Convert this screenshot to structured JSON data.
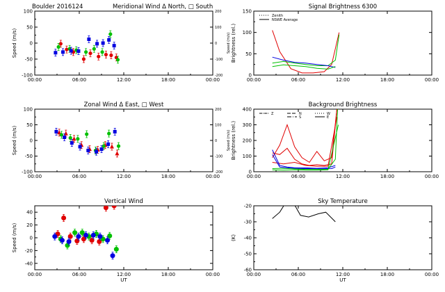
{
  "chart_data": [
    {
      "id": "meridional",
      "type": "scatter",
      "title_left": "Boulder   2016124",
      "title": "Meridional Wind   Δ North, □ South",
      "ylabel": "Speed (m/s)",
      "ylabel_right": "Speed (m/s)",
      "xlim": [
        0,
        24
      ],
      "ylim": [
        -100,
        100
      ],
      "yticks": [
        "-100",
        "-50",
        "0",
        "50",
        "100"
      ],
      "ylim_right": [
        -200,
        200
      ],
      "yticks_right": [
        "-200",
        "-100",
        "0",
        "100",
        "200"
      ],
      "xticks": [
        "00:00",
        "06:00",
        "12:00",
        "18:00",
        "00:00"
      ],
      "xlabel": "",
      "series": [
        {
          "color": "#e00000",
          "marker": "circle",
          "x": [
            3.5,
            4.3,
            5.2,
            6.6,
            7.5,
            8.6,
            9.6,
            10.3,
            11.0
          ],
          "y": [
            -2,
            -20,
            -28,
            -50,
            -32,
            -42,
            -36,
            -38,
            -45
          ]
        },
        {
          "color": "#00c000",
          "marker": "circle",
          "x": [
            3.2,
            4.7,
            5.6,
            6.9,
            8.0,
            9.1,
            10.2,
            11.2
          ],
          "y": [
            -12,
            -18,
            -22,
            -28,
            -18,
            -28,
            28,
            -52
          ]
        },
        {
          "color": "#0000e0",
          "marker": "square",
          "x": [
            2.8,
            3.8,
            4.9,
            5.9,
            7.3,
            8.4,
            9.2,
            10.0,
            10.7
          ],
          "y": [
            -30,
            -28,
            -24,
            -25,
            12,
            -2,
            0,
            10,
            -8
          ]
        }
      ]
    },
    {
      "id": "zonal",
      "type": "scatter",
      "title": "Zonal Wind    Δ East, □ West",
      "ylabel": "Speed (m/s)",
      "ylabel_right": "Speed (m/s)",
      "xlim": [
        0,
        24
      ],
      "ylim": [
        -100,
        100
      ],
      "yticks": [
        "-100",
        "-50",
        "0",
        "50",
        "100"
      ],
      "ylim_right": [
        -200,
        200
      ],
      "yticks_right": [
        "-200",
        "-100",
        "0",
        "100",
        "200"
      ],
      "xticks": [
        "00:00",
        "06:00",
        "12:00",
        "18:00",
        "00:00"
      ],
      "xlabel": "",
      "series": [
        {
          "color": "#e00000",
          "marker": "triangle",
          "x": [
            3.3,
            4.2,
            5.3,
            6.3,
            7.4,
            8.5,
            9.5,
            10.4,
            11.1
          ],
          "y": [
            25,
            22,
            5,
            -15,
            -28,
            -30,
            -15,
            -20,
            -42
          ]
        },
        {
          "color": "#00c000",
          "marker": "circle",
          "x": [
            3.6,
            4.8,
            5.8,
            7.0,
            8.2,
            9.3,
            10.0,
            11.3
          ],
          "y": [
            18,
            8,
            5,
            20,
            -32,
            -18,
            22,
            -18
          ]
        },
        {
          "color": "#0000e0",
          "marker": "square",
          "x": [
            2.9,
            4.0,
            5.0,
            6.1,
            7.2,
            8.3,
            9.0,
            9.9,
            10.8
          ],
          "y": [
            28,
            10,
            -8,
            -20,
            -32,
            -36,
            -28,
            -12,
            28
          ]
        }
      ]
    },
    {
      "id": "vertical",
      "type": "scatter",
      "title": "Vertical Wind",
      "ylabel": "Speed (m/s)",
      "xlim": [
        0,
        24
      ],
      "ylim": [
        -50,
        50
      ],
      "yticks": [
        "-40",
        "-20",
        "0",
        "20",
        "40"
      ],
      "ytick_values": [
        -40,
        -20,
        0,
        20,
        40
      ],
      "xticks": [
        "00:00",
        "06:00",
        "12:00",
        "18:00",
        "00:00"
      ],
      "xlabel": "UT",
      "series": [
        {
          "color": "#e00000",
          "marker": "circle",
          "x": [
            3.1,
            3.9,
            4.8,
            5.7,
            6.6,
            7.7,
            8.7,
            9.6,
            10.7
          ],
          "y": [
            6,
            31,
            2,
            -5,
            -2,
            -4,
            -6,
            47,
            50
          ]
        },
        {
          "color": "#00c000",
          "marker": "circle",
          "x": [
            3.5,
            4.4,
            5.4,
            6.4,
            7.3,
            8.3,
            9.2,
            10.1,
            11.0
          ],
          "y": [
            -2,
            -12,
            8,
            8,
            2,
            6,
            -2,
            3,
            -18
          ]
        },
        {
          "color": "#0000e0",
          "marker": "circle",
          "x": [
            2.7,
            3.7,
            4.6,
            5.9,
            6.9,
            7.9,
            8.8,
            9.8,
            10.5
          ],
          "y": [
            2,
            -4,
            -6,
            2,
            4,
            4,
            2,
            -4,
            -28
          ]
        }
      ]
    },
    {
      "id": "signal",
      "type": "line",
      "title": "Signal Brightness       6300",
      "ylabel": "Brightness (rel.)",
      "xlim": [
        0,
        24
      ],
      "ylim": [
        0,
        150
      ],
      "yticks": [
        "0",
        "50",
        "100",
        "150"
      ],
      "ytick_values": [
        0,
        50,
        100,
        150
      ],
      "xticks": [
        "00:00",
        "06:00",
        "12:00",
        "18:00",
        "00:00"
      ],
      "xlabel": "",
      "legend": [
        "Zenith",
        "NSWE Average"
      ],
      "series": [
        {
          "color": "#e00000",
          "x": [
            2.5,
            3.5,
            5,
            6.5,
            8,
            9.5,
            10.5,
            11.5
          ],
          "y": [
            105,
            55,
            15,
            5,
            5,
            8,
            25,
            100
          ]
        },
        {
          "color": "#00c000",
          "x": [
            2.5,
            4,
            5.5,
            7,
            8.5,
            10,
            11,
            11.5
          ],
          "y": [
            28,
            32,
            28,
            25,
            22,
            22,
            35,
            95
          ]
        },
        {
          "color": "#0000e0",
          "x": [
            2.5,
            4,
            5.5,
            7,
            8.5,
            10,
            11
          ],
          "y": [
            42,
            35,
            30,
            28,
            25,
            22,
            18
          ]
        },
        {
          "color": "#00c000",
          "x": [
            2.5,
            4,
            5.5,
            7,
            8.5,
            10,
            11
          ],
          "y": [
            20,
            24,
            22,
            20,
            16,
            14,
            20
          ]
        }
      ]
    },
    {
      "id": "background",
      "type": "line",
      "title": "Background Brightness",
      "ylabel": "Brightness (rel.)",
      "xlim": [
        0,
        24
      ],
      "ylim": [
        0,
        400
      ],
      "yticks": [
        "0",
        "100",
        "200",
        "300",
        "400"
      ],
      "ytick_values": [
        0,
        100,
        200,
        300,
        400
      ],
      "xticks": [
        "00:00",
        "06:00",
        "12:00",
        "18:00",
        "00:00"
      ],
      "xlabel": "",
      "legend": [
        "Z",
        "N",
        "S",
        "W",
        "E"
      ],
      "series": [
        {
          "color": "#e00000",
          "x": [
            2.5,
            3.5,
            4.5,
            5.5,
            6.5,
            7.5,
            8.5,
            9.5,
            10.5,
            11.2
          ],
          "y": [
            90,
            170,
            300,
            160,
            90,
            60,
            130,
            70,
            90,
            400
          ]
        },
        {
          "color": "#e00000",
          "x": [
            2.5,
            3.5,
            4.5,
            5.5,
            6.5,
            7.5,
            8.5,
            9.5,
            10.5,
            11.2
          ],
          "y": [
            120,
            110,
            150,
            80,
            50,
            40,
            45,
            40,
            50,
            400
          ]
        },
        {
          "color": "#e00000",
          "x": [
            2.5,
            4,
            5.5,
            7,
            8.5,
            10,
            11.2
          ],
          "y": [
            60,
            50,
            60,
            40,
            35,
            35,
            350
          ]
        },
        {
          "color": "#0000e0",
          "x": [
            2.5,
            3.5,
            4.5,
            5.5,
            7,
            8.5,
            10,
            11
          ],
          "y": [
            140,
            40,
            30,
            25,
            25,
            22,
            25,
            40
          ]
        },
        {
          "color": "#0000e0",
          "x": [
            2.5,
            3.5,
            4.5,
            6,
            7.5,
            9,
            10.5,
            11
          ],
          "y": [
            110,
            30,
            25,
            20,
            20,
            18,
            20,
            30
          ]
        },
        {
          "color": "#00c000",
          "x": [
            2.5,
            4,
            5.5,
            7,
            8.5,
            10,
            11,
            11.3
          ],
          "y": [
            20,
            22,
            18,
            15,
            15,
            15,
            80,
            400
          ]
        },
        {
          "color": "#00c000",
          "x": [
            2.5,
            4,
            5.5,
            7,
            8.5,
            10,
            11.4
          ],
          "y": [
            12,
            10,
            12,
            10,
            10,
            12,
            300
          ]
        }
      ]
    },
    {
      "id": "skytemp",
      "type": "line",
      "title": "Sky Temperature",
      "ylabel": "(K)",
      "xlim": [
        0,
        24
      ],
      "ylim": [
        -60,
        -20
      ],
      "yticks": [
        "-60",
        "-50",
        "-40",
        "-30",
        "-20"
      ],
      "ytick_values": [
        -60,
        -50,
        -40,
        -30,
        -20
      ],
      "xticks": [
        "00:00",
        "06:00",
        "12:00",
        "18:00",
        "00:00"
      ],
      "xlabel": "UT",
      "series": [
        {
          "color": "#000000",
          "x": [
            2.5,
            3.5,
            4.3,
            5.2,
            6.3,
            7.4,
            8.7,
            9.7,
            11.0
          ],
          "y": [
            -28,
            -24,
            -18,
            -17,
            -26,
            -27,
            -25,
            -24,
            -30
          ]
        }
      ]
    }
  ]
}
